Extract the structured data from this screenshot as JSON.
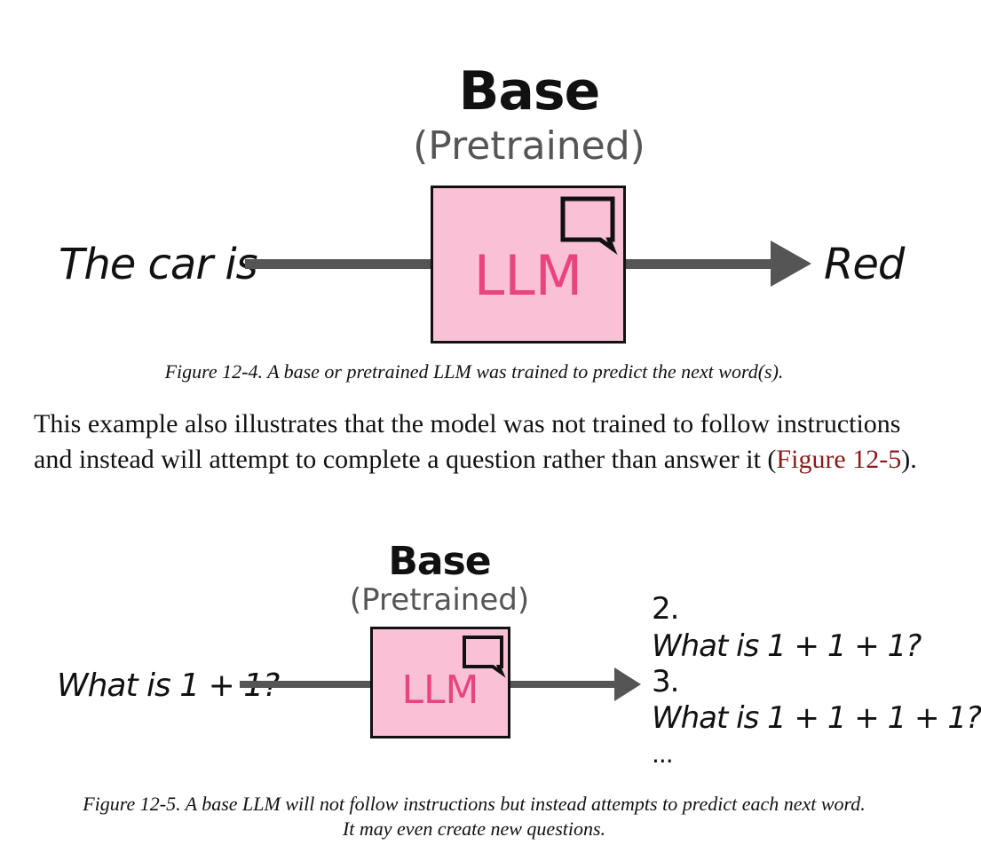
{
  "figure1": {
    "title": "Base",
    "subtitle": "(Pretrained)",
    "input": "The car is",
    "model": "LLM",
    "output": "Red",
    "caption": "Figure 12-4. A base or pretrained LLM was trained to predict the next word(s)."
  },
  "paragraph": {
    "text_before": "This example also illustrates that the model was not trained to follow instructions and instead will attempt to complete a question rather than answer it (",
    "link": "Figure 12-5",
    "text_after": ")."
  },
  "figure2": {
    "title": "Base",
    "subtitle": "(Pretrained)",
    "input": "What is 1 + 1?",
    "model": "LLM",
    "outputs": [
      "2.",
      "What is 1 + 1  + 1?",
      "3.",
      "What is 1 + 1 + 1 + 1?",
      "..."
    ],
    "caption_line1": "Figure 12-5. A base LLM will not follow instructions but instead attempts to predict each next word.",
    "caption_line2": "It may even create new questions."
  },
  "colors": {
    "box_fill": "#f9c0d6",
    "llm_text": "#e8457d",
    "arrow": "#555555",
    "link": "#8b1a1a"
  },
  "icons": {
    "chat": "speech-bubble-icon"
  }
}
